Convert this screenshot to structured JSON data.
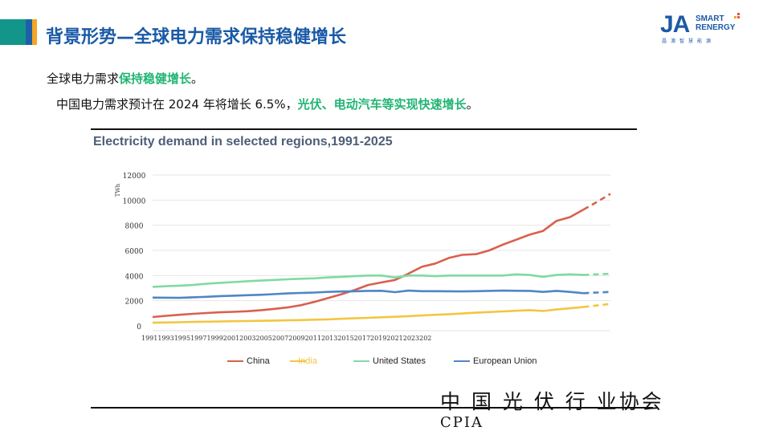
{
  "header": {
    "title": "背景形势—全球电力需求保持稳健增长",
    "colors": {
      "teal": "#12968a",
      "blue": "#1f5fa8",
      "orange": "#f5a623"
    }
  },
  "logo": {
    "mark": "JA",
    "text_line1": "SMART",
    "text_line2": "RENERGY",
    "sub_cn": "晶澳智慧能源"
  },
  "bullets": {
    "line1_plain": "全球电力需求",
    "line1_highlight": "保持稳健增长",
    "line1_end": "。",
    "line2_plain": "中国电力需求预计在 2024 年将增长 6.5%，",
    "line2_highlight": "光伏、电动汽车等实现快速增长",
    "line2_end": "。"
  },
  "footer": {
    "org_cn": "中 国 光 伏 行 业协会",
    "org_en": "CPIA"
  },
  "chart_data": {
    "type": "line",
    "title": "Electricity demand  in selected regions,1991-2025",
    "ylabel": "TWh",
    "xlabel": "",
    "ylim": [
      0,
      12000
    ],
    "yticks": [
      0,
      2000,
      4000,
      6000,
      8000,
      10000,
      12000
    ],
    "x_tick_text": "19911993199519971999200120032005200720092011201320152017201920212023202",
    "x": [
      1991,
      1992,
      1993,
      1994,
      1995,
      1996,
      1997,
      1998,
      1999,
      2000,
      2001,
      2002,
      2003,
      2004,
      2005,
      2006,
      2007,
      2008,
      2009,
      2010,
      2011,
      2012,
      2013,
      2014,
      2015,
      2016,
      2017,
      2018,
      2019,
      2020,
      2021,
      2022,
      2023,
      2024,
      2025
    ],
    "projected_from": 2023,
    "series": [
      {
        "name": "China",
        "color": "#d9604e",
        "values": [
          700,
          800,
          880,
          960,
          1020,
          1080,
          1120,
          1160,
          1240,
          1350,
          1460,
          1640,
          1900,
          2200,
          2500,
          2850,
          3250,
          3450,
          3650,
          4150,
          4700,
          4960,
          5400,
          5650,
          5700,
          6000,
          6450,
          6850,
          7250,
          7550,
          8350,
          8650,
          9250,
          9850,
          10500
        ]
      },
      {
        "name": "India",
        "color": "#f2c641",
        "values": [
          250,
          270,
          290,
          310,
          330,
          350,
          370,
          380,
          400,
          420,
          440,
          460,
          490,
          520,
          560,
          600,
          640,
          680,
          720,
          770,
          830,
          880,
          920,
          980,
          1050,
          1100,
          1150,
          1200,
          1250,
          1180,
          1300,
          1400,
          1500,
          1620,
          1750
        ]
      },
      {
        "name": "United  States",
        "color": "#7fdba1",
        "values": [
          3100,
          3150,
          3200,
          3250,
          3350,
          3420,
          3480,
          3550,
          3600,
          3650,
          3700,
          3750,
          3780,
          3850,
          3900,
          3950,
          4000,
          4000,
          3850,
          4000,
          4000,
          3950,
          4000,
          4000,
          4000,
          4000,
          4000,
          4100,
          4050,
          3900,
          4050,
          4100,
          4050,
          4100,
          4150
        ]
      },
      {
        "name": "European  Union",
        "color": "#4f86c6",
        "values": [
          2250,
          2240,
          2230,
          2270,
          2310,
          2370,
          2400,
          2440,
          2470,
          2520,
          2580,
          2620,
          2650,
          2700,
          2730,
          2750,
          2780,
          2790,
          2680,
          2800,
          2760,
          2760,
          2750,
          2740,
          2760,
          2780,
          2800,
          2790,
          2780,
          2700,
          2780,
          2700,
          2600,
          2650,
          2700
        ]
      }
    ],
    "legend_placement": "bottom",
    "grid": true
  }
}
